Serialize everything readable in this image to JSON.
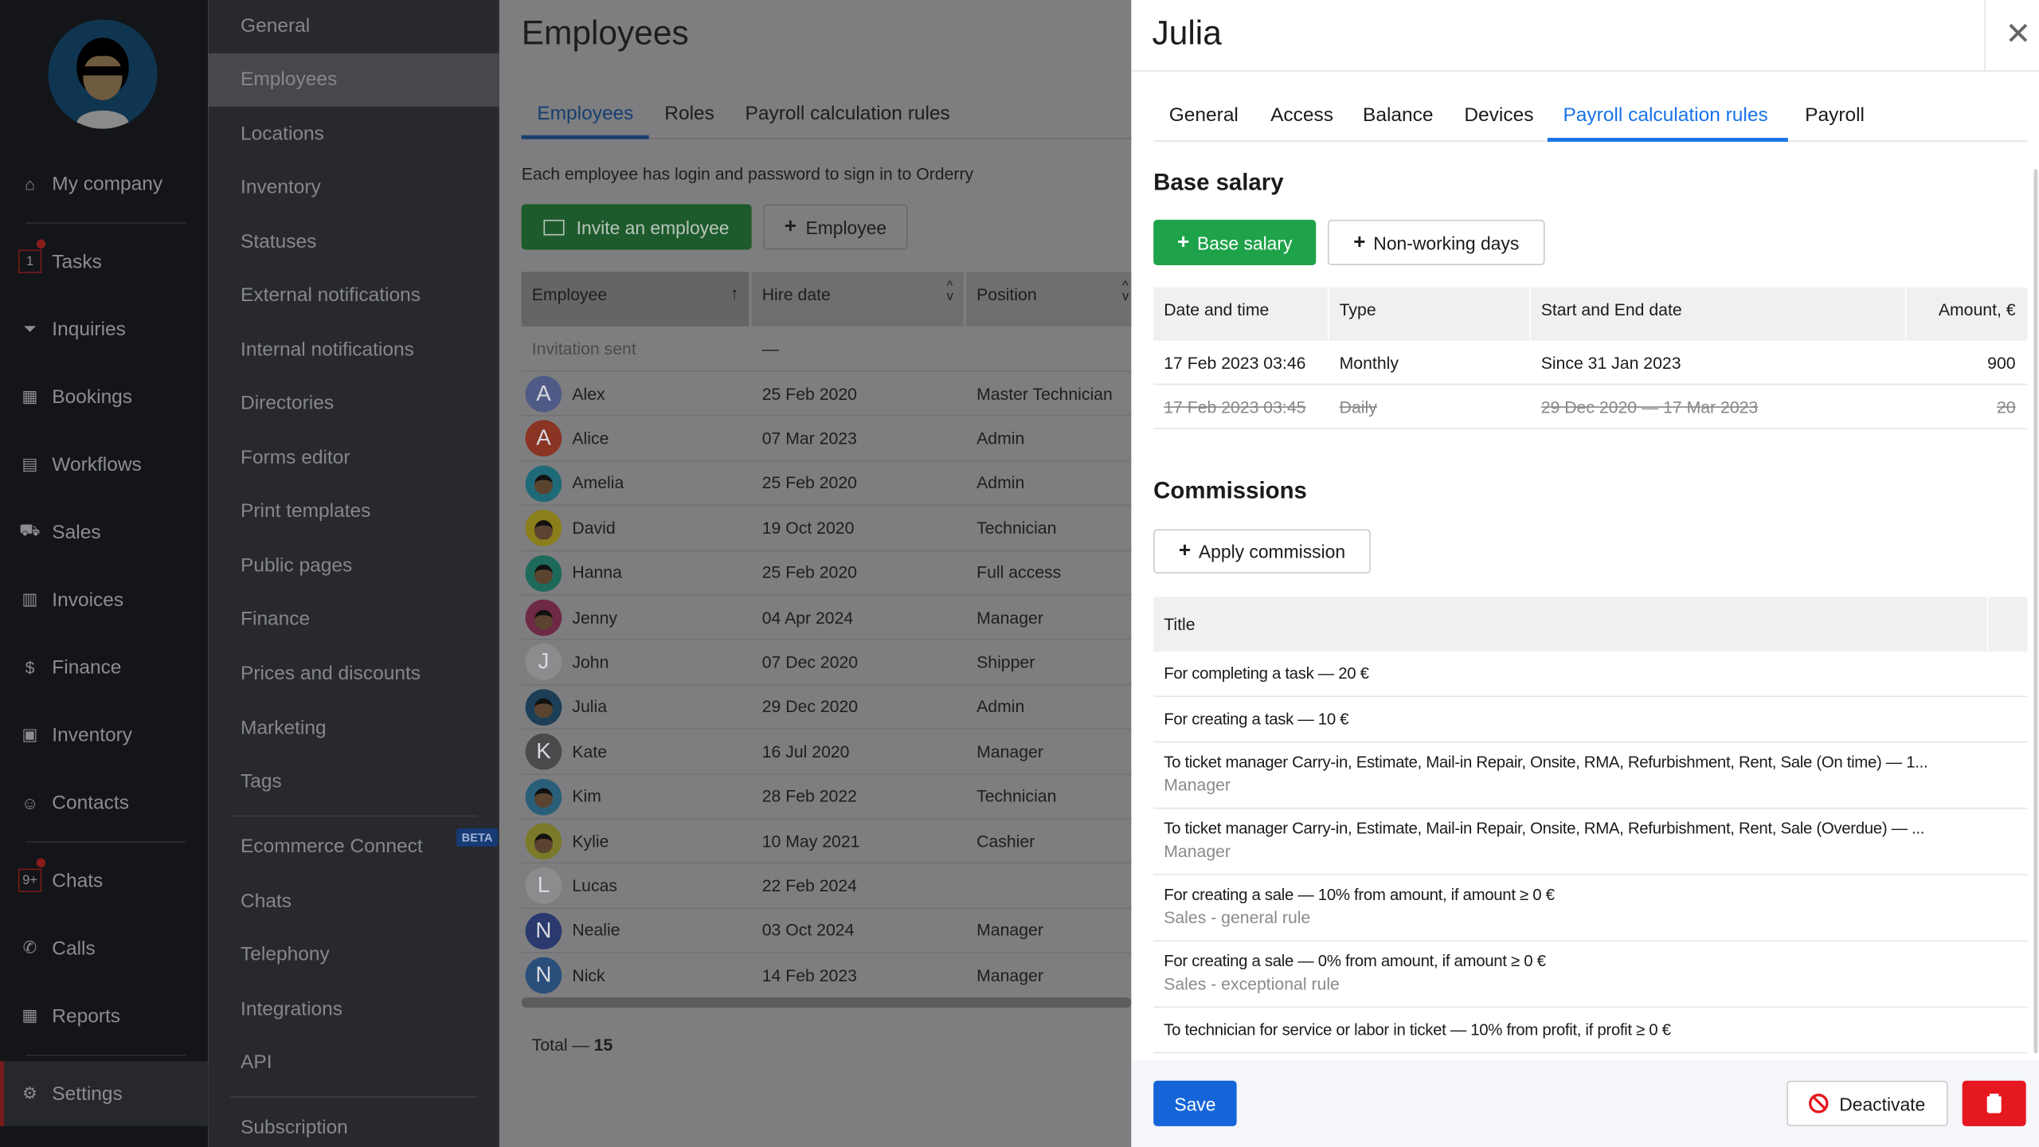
{
  "nav": {
    "items": [
      {
        "label": "My company",
        "icon": "home-icon",
        "y": 141
      },
      {
        "label": "Tasks",
        "icon": "tasks-icon",
        "y": 201,
        "badge": "1"
      },
      {
        "label": "Inquiries",
        "icon": "funnel-icon",
        "y": 253
      },
      {
        "label": "Bookings",
        "icon": "calendar-clock-icon",
        "y": 305
      },
      {
        "label": "Workflows",
        "icon": "inbox-icon",
        "y": 357
      },
      {
        "label": "Sales",
        "icon": "cart-icon",
        "y": 409
      },
      {
        "label": "Invoices",
        "icon": "invoice-icon",
        "y": 461
      },
      {
        "label": "Finance",
        "icon": "dollar-icon",
        "y": 513
      },
      {
        "label": "Inventory",
        "icon": "boxes-icon",
        "y": 565
      },
      {
        "label": "Contacts",
        "icon": "contacts-icon",
        "y": 617
      },
      {
        "label": "Chats",
        "icon": "chat-icon",
        "y": 677,
        "badge": "9+"
      },
      {
        "label": "Calls",
        "icon": "phone-icon",
        "y": 729
      },
      {
        "label": "Reports",
        "icon": "reports-icon",
        "y": 781
      },
      {
        "label": "Settings",
        "icon": "gear-icon",
        "y": 841,
        "active": true
      }
    ]
  },
  "settings_menu": {
    "items": [
      "General",
      "Employees",
      "Locations",
      "Inventory",
      "Statuses",
      "External notifications",
      "Internal notifications",
      "Directories",
      "Forms editor",
      "Print templates",
      "Public pages",
      "Finance",
      "Prices and discounts",
      "Marketing",
      "Tags",
      "Ecommerce Connect",
      "Chats",
      "Telephony",
      "Integrations",
      "API",
      "Subscription"
    ],
    "active": "Employees",
    "beta_label": "BETA"
  },
  "main": {
    "title": "Employees",
    "tabs": [
      "Employees",
      "Roles",
      "Payroll calculation rules"
    ],
    "active_tab": "Employees",
    "description": "Each employee has login and password to sign in to Orderry",
    "invite_label": "Invite an employee",
    "add_employee_label": "Employee",
    "columns": [
      "Employee",
      "Hire date",
      "Position"
    ],
    "invitation_row": {
      "label": "Invitation sent",
      "hire": "—"
    },
    "rows": [
      {
        "name": "Alex",
        "hire": "25 Feb 2020",
        "position": "Master Technician",
        "initial": "A",
        "color": "#4f5a86"
      },
      {
        "name": "Alice",
        "hire": "07 Mar 2023",
        "position": "Admin",
        "initial": "A",
        "color": "#8a3424"
      },
      {
        "name": "Amelia",
        "hire": "25 Feb 2020",
        "position": "Admin",
        "initial": "",
        "color": "#1f6a78"
      },
      {
        "name": "David",
        "hire": "19 Oct 2020",
        "position": "Technician",
        "initial": "",
        "color": "#8a7f1a"
      },
      {
        "name": "Hanna",
        "hire": "25 Feb 2020",
        "position": "Full access",
        "initial": "",
        "color": "#1d6a5a"
      },
      {
        "name": "Jenny",
        "hire": "04 Apr 2024",
        "position": "Manager",
        "initial": "",
        "color": "#6e2a44"
      },
      {
        "name": "John",
        "hire": "07 Dec 2020",
        "position": "Shipper",
        "initial": "J",
        "color": "#8c8c8e"
      },
      {
        "name": "Julia",
        "hire": "29 Dec 2020",
        "position": "Admin",
        "initial": "",
        "color": "#1c3e57"
      },
      {
        "name": "Kate",
        "hire": "16 Jul 2020",
        "position": "Manager",
        "initial": "K",
        "color": "#4a4a4c"
      },
      {
        "name": "Kim",
        "hire": "28 Feb 2022",
        "position": "Technician",
        "initial": "",
        "color": "#2a5f7a"
      },
      {
        "name": "Kylie",
        "hire": "10 May 2021",
        "position": "Cashier",
        "initial": "",
        "color": "#7a7a2a"
      },
      {
        "name": "Lucas",
        "hire": "22 Feb 2024",
        "position": "",
        "initial": "L",
        "color": "#8c8c8e"
      },
      {
        "name": "Nealie",
        "hire": "03 Oct 2024",
        "position": "Manager",
        "initial": "N",
        "color": "#2a3a6e"
      },
      {
        "name": "Nick",
        "hire": "14 Feb 2023",
        "position": "Manager",
        "initial": "N",
        "color": "#2a4e7a"
      }
    ],
    "total_label": "Total —",
    "total": "15"
  },
  "panel": {
    "title": "Julia",
    "tabs": [
      "General",
      "Access",
      "Balance",
      "Devices",
      "Payroll calculation rules",
      "Payroll"
    ],
    "active_tab": "Payroll calculation rules",
    "base_salary": {
      "heading": "Base salary",
      "add_label": "Base salary",
      "nonworking_label": "Non-working days",
      "columns": [
        "Date and time",
        "Type",
        "Start and End date",
        "Amount, €"
      ],
      "rows": [
        {
          "date": "17 Feb 2023 03:46",
          "type": "Monthly",
          "period": "Since 31 Jan 2023",
          "amount": "900",
          "inactive": false
        },
        {
          "date": "17 Feb 2023 03:45",
          "type": "Daily",
          "period": "29 Dec 2020 — 17 Mar 2023",
          "amount": "20",
          "inactive": true
        }
      ]
    },
    "commissions": {
      "heading": "Commissions",
      "apply_label": "Apply commission",
      "column": "Title",
      "rows": [
        {
          "title": "For completing a task — 20 €",
          "sub": ""
        },
        {
          "title": "For creating a task — 10 €",
          "sub": ""
        },
        {
          "title": "To ticket manager Carry-in, Estimate, Mail-in Repair, Onsite, RMA, Refurbishment, Rent, Sale (On time) — 1...",
          "sub": "Manager"
        },
        {
          "title": "To ticket manager Carry-in, Estimate, Mail-in Repair, Onsite, RMA, Refurbishment, Rent, Sale (Overdue) — ...",
          "sub": "Manager"
        },
        {
          "title": "For creating a sale — 10% from amount, if amount ≥ 0 €",
          "sub": "Sales - general rule"
        },
        {
          "title": "For creating a sale — 0% from amount, if amount ≥ 0 €",
          "sub": "Sales - exceptional rule"
        },
        {
          "title": "To technician for service or labor in ticket — 10% from profit, if profit ≥ 0 €",
          "sub": ""
        }
      ]
    },
    "save_label": "Save",
    "deactivate_label": "Deactivate"
  },
  "colors": {
    "accent": "#1a73e8",
    "green": "#1fa34a",
    "danger": "#e5171f",
    "save": "#1565d8"
  }
}
